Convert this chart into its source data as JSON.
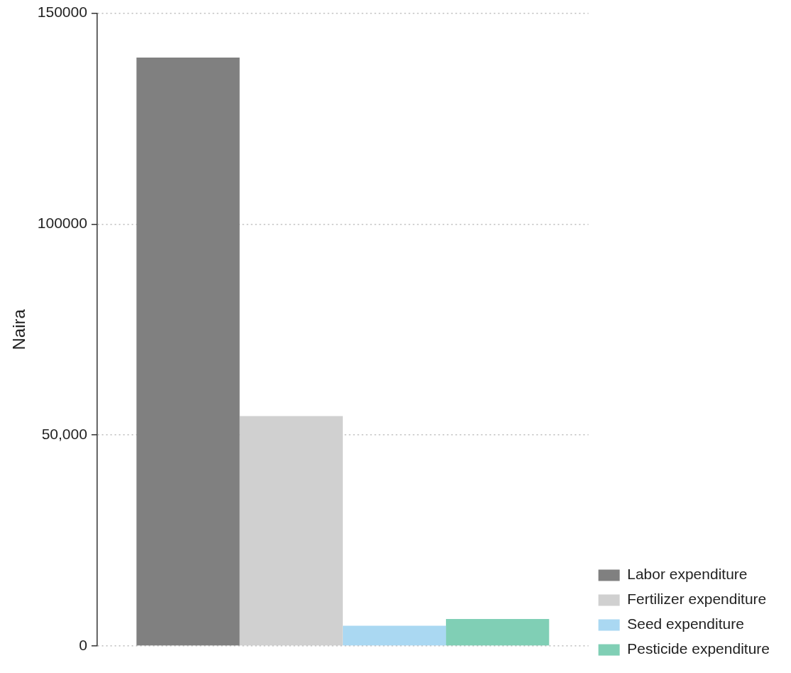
{
  "chart_data": {
    "type": "bar",
    "ylabel": "Naira",
    "categories": [
      null
    ],
    "series": [
      {
        "name": "Labor expenditure",
        "color": "#808080",
        "values": [
          139500
        ]
      },
      {
        "name": "Fertilizer expenditure",
        "color": "#d0d0d0",
        "values": [
          54500
        ]
      },
      {
        "name": "Seed expenditure",
        "color": "#aad8f2",
        "values": [
          4800
        ]
      },
      {
        "name": "Pesticide expenditure",
        "color": "#80cfb5",
        "values": [
          6400
        ]
      }
    ],
    "ylim": [
      0,
      150000
    ],
    "yticks": [
      {
        "value": 0,
        "label": "0"
      },
      {
        "value": 50000,
        "label": "50,000"
      },
      {
        "value": 100000,
        "label": "100000"
      },
      {
        "value": 150000,
        "label": "150000"
      }
    ],
    "grid": "y",
    "legend": "bottom right"
  }
}
